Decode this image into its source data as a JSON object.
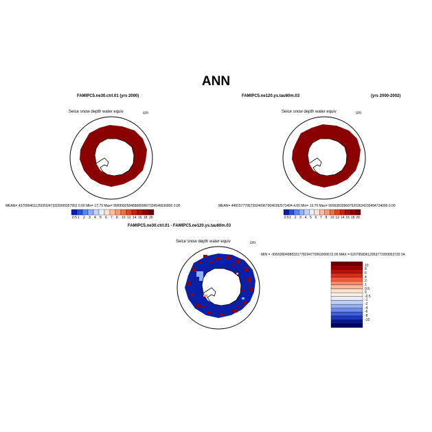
{
  "page_title": "ANN",
  "panels": [
    {
      "title_left": "FAMIPC5.ne30.ctrl.01 (yrs 2000)",
      "title_right": "",
      "variable": "Seice snow depth water equiv",
      "units": "cm",
      "stats": "MEAN= 4370994611250292473325999357952 0.00   Min=   17.79   Max=   9999992584886899607334546636800 0.00",
      "colorbar_ticks": [
        "0.5",
        "1",
        "2",
        "3",
        "4",
        "5",
        "6",
        "7",
        "8",
        "10",
        "12",
        "14",
        "16",
        "18",
        "20"
      ]
    },
    {
      "title_left": "FAMIPC5.ne120.ys.tau60m.03",
      "title_right": "(yrs 2000-2002)",
      "variable": "Seice snow depth water equiv",
      "units": "cm",
      "stats": "MEAN= 44815777957392409679046392571494 4.00   Min=   13.70   Max=   9999383296075203634230494724096 0.00",
      "colorbar_ticks": [
        "0.5",
        "1",
        "2",
        "3",
        "4",
        "5",
        "6",
        "7",
        "8",
        "10",
        "12",
        "14",
        "16",
        "18",
        "20"
      ]
    },
    {
      "title_left": "FAMIPC5.ne30.ctrl.01 - FAMIPC5.ne120.ys.tau60m.03",
      "title_right": "",
      "variable": "Seice snow depth water equiv",
      "units": "cm",
      "stats": "MIN = -99592804988331778294770063900672.00  MAX = 62079583612953771959953733 54",
      "colorbar_ticks": [
        "10",
        "8",
        "6",
        "4",
        "2",
        "1",
        "0.5",
        "0",
        "-0.5",
        "-1",
        "-2",
        "-4",
        "-6",
        "-8",
        "-10"
      ]
    }
  ],
  "colors": {
    "ice_dark_red": "#8b0000",
    "land": "#ffffff",
    "diff_blue": "#0a1fa8",
    "diff_red": "#8b0000"
  },
  "abs_palette": [
    "#0a1fa8",
    "#2a4fd8",
    "#5a85f0",
    "#8fb0f5",
    "#c0d4fa",
    "#e8eefc",
    "#fde3d3",
    "#fbc0a0",
    "#f59a72",
    "#ee6e4a",
    "#e04226",
    "#c8200e",
    "#a81008",
    "#900000",
    "#6b0000"
  ],
  "diff_palette": [
    "#6b0000",
    "#900000",
    "#b81408",
    "#d83018",
    "#ee5a3a",
    "#f58c6c",
    "#f9b89c",
    "#fde0cc",
    "#fff0e8",
    "#e6ecfa",
    "#c0d0f5",
    "#98b0f0",
    "#6a8be8",
    "#4060d8",
    "#1e38c0",
    "#08188c",
    "#000060"
  ]
}
